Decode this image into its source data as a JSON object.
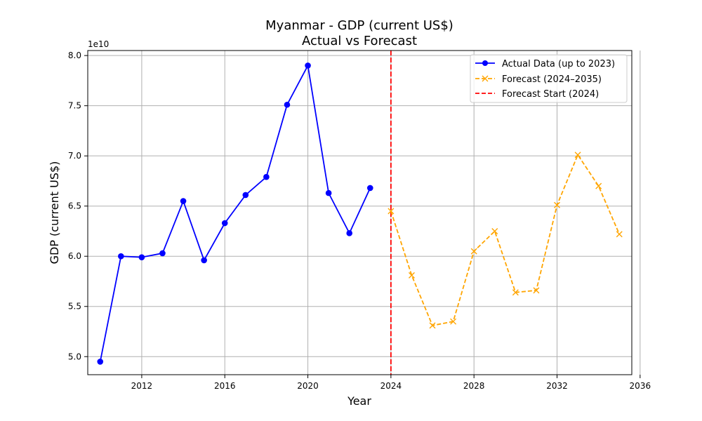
{
  "chart_data": {
    "type": "line",
    "title": "Myanmar - GDP (current US$)",
    "subtitle": "Actual vs Forecast",
    "xlabel": "Year",
    "ylabel": "GDP (current US$)",
    "y_offset_label": "1e10",
    "xlim": [
      2009.4,
      2035.6
    ],
    "ylim": [
      4.82,
      8.05
    ],
    "x_ticks": [
      2012,
      2016,
      2020,
      2024,
      2028,
      2032,
      2036
    ],
    "y_ticks": [
      "5.0",
      "5.5",
      "6.0",
      "6.5",
      "7.0",
      "7.5",
      "8.0"
    ],
    "grid": true,
    "legend_position": "upper right",
    "series": [
      {
        "name": "Actual Data (up to 2023)",
        "color": "#0000ff",
        "line_style": "solid",
        "marker": "circle",
        "x": [
          2010,
          2011,
          2012,
          2013,
          2014,
          2015,
          2016,
          2017,
          2018,
          2019,
          2020,
          2021,
          2022,
          2023
        ],
        "y": [
          4.95,
          6.0,
          5.99,
          6.03,
          6.55,
          5.96,
          6.33,
          6.61,
          6.79,
          7.51,
          7.9,
          6.63,
          6.23,
          6.68
        ]
      },
      {
        "name": "Forecast (2024–2035)",
        "color": "#ffa500",
        "line_style": "dashed",
        "marker": "x",
        "x": [
          2024,
          2025,
          2026,
          2027,
          2028,
          2029,
          2030,
          2031,
          2032,
          2033,
          2034,
          2035
        ],
        "y": [
          6.45,
          5.81,
          5.31,
          5.35,
          6.05,
          6.25,
          5.64,
          5.66,
          6.51,
          7.01,
          6.7,
          6.22
        ]
      }
    ],
    "vlines": [
      {
        "name": "Forecast Start (2024)",
        "x": 2024,
        "color": "#ff0000",
        "line_style": "dashed"
      }
    ]
  }
}
